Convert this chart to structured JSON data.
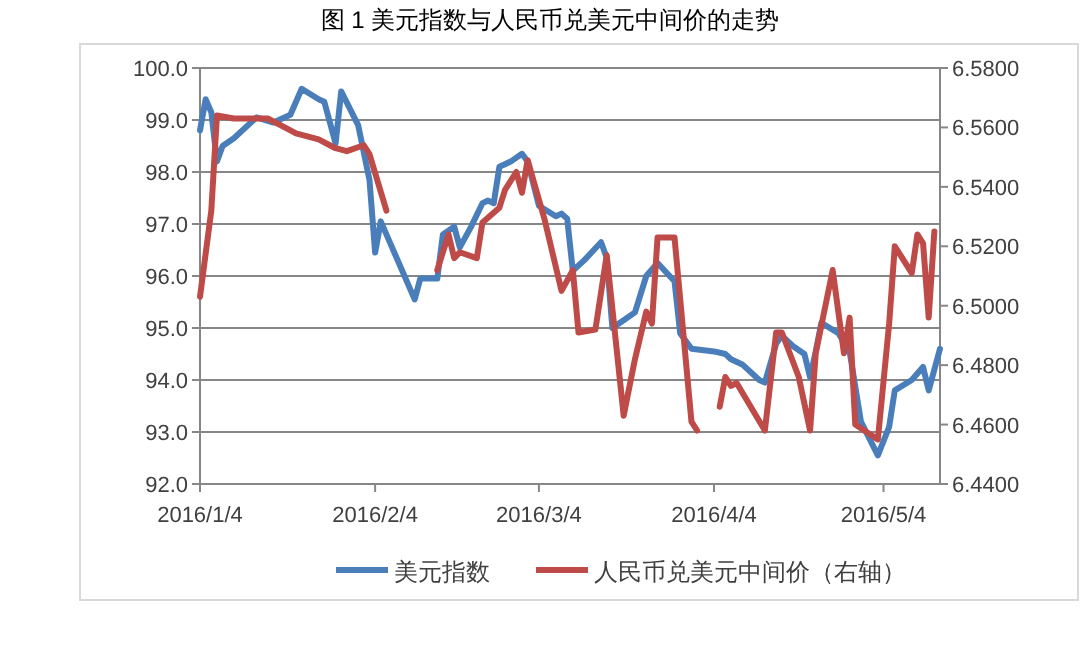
{
  "chart_data": {
    "type": "line",
    "title": "图 1  美元指数与人民币兑美元中间价的走势",
    "xlim": [
      "2016-01-04",
      "2016-05-14"
    ],
    "xticks": [
      {
        "value": "2016-01-04",
        "label": "2016/1/4"
      },
      {
        "value": "2016-02-04",
        "label": "2016/2/4"
      },
      {
        "value": "2016-03-04",
        "label": "2016/3/4"
      },
      {
        "value": "2016-04-04",
        "label": "2016/4/4"
      },
      {
        "value": "2016-05-04",
        "label": "2016/5/4"
      }
    ],
    "ylim": [
      92,
      100
    ],
    "yticks": [
      {
        "value": 92,
        "label": "92.0"
      },
      {
        "value": 93,
        "label": "93.0"
      },
      {
        "value": 94,
        "label": "94.0"
      },
      {
        "value": 95,
        "label": "95.0"
      },
      {
        "value": 96,
        "label": "96.0"
      },
      {
        "value": 97,
        "label": "97.0"
      },
      {
        "value": 98,
        "label": "98.0"
      },
      {
        "value": 99,
        "label": "99.0"
      },
      {
        "value": 100,
        "label": "100.0"
      }
    ],
    "y2lim": [
      6.44,
      6.58
    ],
    "y2ticks": [
      {
        "value": 6.44,
        "label": "6.4400"
      },
      {
        "value": 6.46,
        "label": "6.4600"
      },
      {
        "value": 6.48,
        "label": "6.4800"
      },
      {
        "value": 6.5,
        "label": "6.5000"
      },
      {
        "value": 6.52,
        "label": "6.5200"
      },
      {
        "value": 6.54,
        "label": "6.5400"
      },
      {
        "value": 6.56,
        "label": "6.5600"
      },
      {
        "value": 6.58,
        "label": "6.5800"
      }
    ],
    "grid": "y",
    "legend": "bottom",
    "series": [
      {
        "name": "美元指数",
        "color": "#4a7ebb",
        "x": [
          "2016-01-04",
          "2016-01-05",
          "2016-01-06",
          "2016-01-07",
          "2016-01-08",
          "2016-01-10",
          "2016-01-11",
          "2016-01-13",
          "2016-01-14",
          "2016-01-17",
          "2016-01-20",
          "2016-01-22",
          "2016-01-25",
          "2016-01-26",
          "2016-01-28",
          "2016-01-29",
          "2016-02-01",
          "2016-02-03",
          "2016-02-04",
          "2016-02-05",
          "2016-02-07",
          "2016-02-09",
          "2016-02-11",
          "2016-02-12",
          "2016-02-15",
          "2016-02-16",
          "2016-02-18",
          "2016-02-19",
          "2016-02-21",
          "2016-02-23",
          "2016-02-24",
          "2016-02-25",
          "2016-02-26",
          "2016-02-28",
          "2016-03-01",
          "2016-03-02",
          "2016-03-04",
          "2016-03-07",
          "2016-03-08",
          "2016-03-09",
          "2016-03-10",
          "2016-03-12",
          "2016-03-15",
          "2016-03-16",
          "2016-03-17",
          "2016-03-19",
          "2016-03-21",
          "2016-03-23",
          "2016-03-25",
          "2016-03-28",
          "2016-03-29",
          "2016-03-31",
          "2016-04-04",
          "2016-04-06",
          "2016-04-07",
          "2016-04-09",
          "2016-04-12",
          "2016-04-13",
          "2016-04-15",
          "2016-04-16",
          "2016-04-18",
          "2016-04-20",
          "2016-04-21",
          "2016-04-22",
          "2016-04-23",
          "2016-04-26",
          "2016-04-28",
          "2016-04-30",
          "2016-05-03",
          "2016-05-05",
          "2016-05-06",
          "2016-05-09",
          "2016-05-11",
          "2016-05-12",
          "2016-05-14"
        ],
        "values": [
          98.8,
          99.4,
          99.15,
          98.2,
          98.5,
          98.65,
          98.75,
          98.95,
          99.05,
          98.95,
          99.1,
          99.6,
          99.4,
          99.35,
          98.55,
          99.55,
          98.9,
          97.85,
          96.45,
          97.05,
          96.55,
          96.05,
          95.55,
          95.95,
          95.95,
          96.8,
          96.95,
          96.55,
          96.95,
          97.4,
          97.45,
          97.4,
          98.1,
          98.2,
          98.35,
          98.2,
          97.35,
          97.15,
          97.2,
          97.1,
          96.1,
          96.3,
          96.65,
          96.35,
          95.0,
          95.15,
          95.3,
          96.0,
          96.25,
          95.9,
          94.9,
          94.6,
          94.55,
          94.5,
          94.4,
          94.3,
          94.0,
          93.95,
          94.7,
          94.85,
          94.65,
          94.5,
          94.05,
          94.55,
          95.1,
          94.9,
          94.55,
          93.2,
          92.55,
          93.1,
          93.8,
          94.0,
          94.25,
          93.8,
          94.6
        ]
      },
      {
        "name": "人民币兑美元中间价（右轴）",
        "color": "#be4b48",
        "axis": "y2",
        "x": [
          "2016-01-04",
          "2016-01-06",
          "2016-01-07",
          "2016-01-10",
          "2016-01-14",
          "2016-01-16",
          "2016-01-19",
          "2016-01-21",
          "2016-01-25",
          "2016-01-28",
          "2016-01-30",
          "2016-02-02",
          "2016-02-03",
          "2016-02-06",
          "2016-02-10",
          "2016-02-15",
          "2016-02-17",
          "2016-02-18",
          "2016-02-19",
          "2016-02-22",
          "2016-02-23",
          "2016-02-26",
          "2016-02-27",
          "2016-02-29",
          "2016-03-01",
          "2016-03-02",
          "2016-03-05",
          "2016-03-08",
          "2016-03-10",
          "2016-03-11",
          "2016-03-14",
          "2016-03-16",
          "2016-03-19",
          "2016-03-21",
          "2016-03-23",
          "2016-03-24",
          "2016-03-25",
          "2016-03-28",
          "2016-03-31",
          "2016-04-01",
          "2016-04-03",
          "2016-04-05",
          "2016-04-06",
          "2016-04-07",
          "2016-04-08",
          "2016-04-13",
          "2016-04-15",
          "2016-04-16",
          "2016-04-19",
          "2016-04-21",
          "2016-04-22",
          "2016-04-25",
          "2016-04-27",
          "2016-04-28",
          "2016-04-29",
          "2016-05-03",
          "2016-05-05",
          "2016-05-06",
          "2016-05-09",
          "2016-05-10",
          "2016-05-11",
          "2016-05-12",
          "2016-05-13"
        ],
        "values": [
          6.503,
          6.532,
          6.564,
          6.563,
          6.563,
          6.563,
          6.56,
          6.558,
          6.556,
          6.553,
          6.552,
          6.554,
          6.551,
          6.532,
          null,
          6.512,
          6.524,
          6.516,
          6.518,
          6.516,
          6.528,
          6.533,
          6.539,
          6.545,
          6.538,
          6.549,
          6.529,
          6.505,
          6.512,
          6.491,
          6.492,
          6.517,
          6.463,
          6.482,
          6.498,
          6.494,
          6.523,
          6.523,
          6.461,
          6.458,
          null,
          6.466,
          6.476,
          6.473,
          6.474,
          6.458,
          6.491,
          6.491,
          6.476,
          6.458,
          6.484,
          6.512,
          6.484,
          6.496,
          6.46,
          6.455,
          6.494,
          6.52,
          6.511,
          6.524,
          6.521,
          6.496,
          6.525
        ]
      }
    ]
  }
}
